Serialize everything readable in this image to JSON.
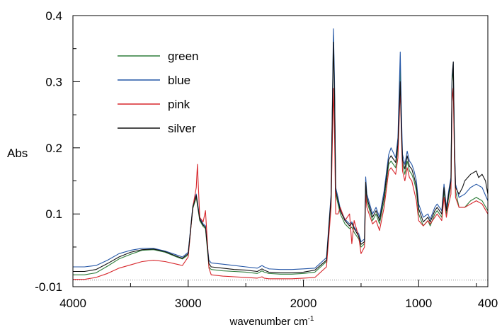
{
  "chart_data": {
    "type": "line",
    "title": "",
    "xlabel": "wavenumber",
    "xlabel_unit": "cm",
    "xlabel_unit_sup": "-1",
    "ylabel": "Abs",
    "x_reversed": true,
    "xlim": [
      4000,
      400
    ],
    "ylim": [
      -0.01,
      0.4
    ],
    "x_ticks": [
      4000,
      3000,
      2000,
      1000,
      400
    ],
    "x_tick_labels": [
      "4000",
      "3000",
      "2000",
      "1000",
      "400"
    ],
    "x_minor_ticks": [
      3500,
      2500,
      1500,
      500
    ],
    "y_ticks": [
      -0.01,
      0.1,
      0.2,
      0.3,
      0.4
    ],
    "y_tick_labels": [
      "-0.01",
      "0.1",
      "0.2",
      "0.3",
      "0.4"
    ],
    "y_minor_ticks": [
      0.05,
      0.15,
      0.25,
      0.35
    ],
    "baseline_y": 0,
    "grid": false,
    "legend_position": "top-left",
    "series": [
      {
        "name": "green",
        "color": "#2e7d3a",
        "x": [
          4000,
          3900,
          3800,
          3700,
          3600,
          3500,
          3400,
          3300,
          3200,
          3100,
          3050,
          3000,
          2960,
          2930,
          2900,
          2870,
          2850,
          2820,
          2800,
          2700,
          2600,
          2500,
          2400,
          2360,
          2340,
          2300,
          2200,
          2100,
          2000,
          1900,
          1800,
          1760,
          1740,
          1730,
          1720,
          1700,
          1680,
          1640,
          1600,
          1580,
          1560,
          1520,
          1500,
          1470,
          1460,
          1450,
          1400,
          1370,
          1340,
          1300,
          1260,
          1240,
          1200,
          1180,
          1160,
          1150,
          1140,
          1120,
          1100,
          1080,
          1060,
          1040,
          1020,
          1000,
          960,
          920,
          900,
          860,
          840,
          800,
          780,
          760,
          740,
          720,
          710,
          700,
          690,
          680,
          650,
          600,
          550,
          500,
          450,
          400
        ],
        "y": [
          0.008,
          0.008,
          0.011,
          0.021,
          0.032,
          0.039,
          0.045,
          0.046,
          0.042,
          0.035,
          0.032,
          0.038,
          0.108,
          0.125,
          0.09,
          0.081,
          0.078,
          0.02,
          0.016,
          0.014,
          0.013,
          0.012,
          0.01,
          0.014,
          0.012,
          0.01,
          0.009,
          0.009,
          0.01,
          0.012,
          0.028,
          0.12,
          0.37,
          0.29,
          0.13,
          0.115,
          0.1,
          0.085,
          0.078,
          0.08,
          0.072,
          0.062,
          0.05,
          0.055,
          0.142,
          0.12,
          0.09,
          0.1,
          0.085,
          0.12,
          0.175,
          0.18,
          0.17,
          0.2,
          0.32,
          0.24,
          0.175,
          0.16,
          0.18,
          0.165,
          0.16,
          0.15,
          0.135,
          0.1,
          0.082,
          0.09,
          0.082,
          0.1,
          0.105,
          0.095,
          0.135,
          0.1,
          0.125,
          0.145,
          0.3,
          0.32,
          0.2,
          0.135,
          0.11,
          0.11,
          0.12,
          0.125,
          0.12,
          0.105
        ]
      },
      {
        "name": "blue",
        "color": "#2456a6",
        "x": [
          4000,
          3900,
          3800,
          3700,
          3600,
          3500,
          3400,
          3300,
          3200,
          3100,
          3050,
          3000,
          2960,
          2930,
          2900,
          2870,
          2850,
          2820,
          2800,
          2700,
          2600,
          2500,
          2400,
          2360,
          2340,
          2300,
          2200,
          2100,
          2000,
          1900,
          1800,
          1760,
          1740,
          1730,
          1720,
          1700,
          1680,
          1640,
          1600,
          1580,
          1560,
          1520,
          1500,
          1470,
          1460,
          1450,
          1400,
          1370,
          1340,
          1300,
          1260,
          1240,
          1200,
          1180,
          1160,
          1150,
          1140,
          1120,
          1100,
          1080,
          1060,
          1040,
          1020,
          1000,
          960,
          920,
          900,
          860,
          840,
          800,
          780,
          760,
          740,
          720,
          710,
          700,
          690,
          680,
          650,
          600,
          550,
          500,
          450,
          400
        ],
        "y": [
          0.02,
          0.02,
          0.022,
          0.03,
          0.04,
          0.045,
          0.048,
          0.048,
          0.044,
          0.038,
          0.035,
          0.042,
          0.112,
          0.13,
          0.094,
          0.085,
          0.082,
          0.03,
          0.026,
          0.024,
          0.022,
          0.02,
          0.018,
          0.022,
          0.02,
          0.017,
          0.016,
          0.016,
          0.017,
          0.018,
          0.034,
          0.13,
          0.38,
          0.3,
          0.14,
          0.125,
          0.108,
          0.092,
          0.085,
          0.088,
          0.08,
          0.07,
          0.058,
          0.062,
          0.156,
          0.13,
          0.1,
          0.11,
          0.095,
          0.135,
          0.19,
          0.2,
          0.185,
          0.215,
          0.345,
          0.255,
          0.19,
          0.175,
          0.195,
          0.18,
          0.175,
          0.165,
          0.15,
          0.115,
          0.095,
          0.1,
          0.092,
          0.11,
          0.115,
          0.105,
          0.145,
          0.11,
          0.135,
          0.155,
          0.31,
          0.33,
          0.21,
          0.145,
          0.125,
          0.13,
          0.14,
          0.145,
          0.14,
          0.12
        ]
      },
      {
        "name": "pink",
        "color": "#d7262b",
        "x": [
          4000,
          3900,
          3800,
          3700,
          3600,
          3500,
          3400,
          3300,
          3200,
          3100,
          3050,
          3000,
          2960,
          2930,
          2920,
          2900,
          2870,
          2850,
          2820,
          2800,
          2700,
          2600,
          2500,
          2400,
          2360,
          2340,
          2300,
          2200,
          2100,
          2000,
          1900,
          1800,
          1760,
          1740,
          1730,
          1720,
          1700,
          1680,
          1640,
          1600,
          1580,
          1560,
          1520,
          1500,
          1470,
          1460,
          1450,
          1400,
          1370,
          1340,
          1300,
          1260,
          1240,
          1200,
          1180,
          1160,
          1150,
          1140,
          1120,
          1100,
          1080,
          1060,
          1040,
          1020,
          1000,
          960,
          920,
          900,
          860,
          840,
          800,
          780,
          760,
          740,
          720,
          710,
          700,
          690,
          680,
          650,
          600,
          550,
          500,
          450,
          400
        ],
        "y": [
          0.001,
          0.001,
          0.004,
          0.01,
          0.018,
          0.023,
          0.028,
          0.03,
          0.028,
          0.024,
          0.022,
          0.035,
          0.11,
          0.14,
          0.175,
          0.095,
          0.088,
          0.105,
          0.018,
          0.008,
          0.006,
          0.005,
          0.004,
          0.003,
          0.005,
          0.003,
          0.002,
          0.002,
          0.002,
          0.003,
          0.004,
          0.02,
          0.11,
          0.29,
          0.22,
          0.1,
          0.1,
          0.11,
          0.09,
          0.1,
          0.055,
          0.09,
          0.065,
          0.04,
          0.05,
          0.13,
          0.11,
          0.085,
          0.09,
          0.075,
          0.11,
          0.165,
          0.17,
          0.16,
          0.185,
          0.29,
          0.22,
          0.165,
          0.15,
          0.17,
          0.155,
          0.15,
          0.135,
          0.12,
          0.09,
          0.082,
          0.09,
          0.085,
          0.095,
          0.1,
          0.09,
          0.125,
          0.095,
          0.115,
          0.13,
          0.27,
          0.29,
          0.185,
          0.125,
          0.11,
          0.11,
          0.115,
          0.12,
          0.115,
          0.1
        ]
      },
      {
        "name": "silver",
        "color": "#111111",
        "x": [
          4000,
          3900,
          3800,
          3700,
          3600,
          3500,
          3400,
          3300,
          3200,
          3100,
          3050,
          3000,
          2960,
          2930,
          2900,
          2870,
          2850,
          2820,
          2800,
          2700,
          2600,
          2500,
          2400,
          2360,
          2340,
          2300,
          2200,
          2100,
          2000,
          1900,
          1800,
          1760,
          1740,
          1730,
          1720,
          1700,
          1680,
          1640,
          1600,
          1580,
          1560,
          1520,
          1500,
          1470,
          1460,
          1450,
          1400,
          1370,
          1340,
          1300,
          1260,
          1240,
          1200,
          1180,
          1160,
          1150,
          1140,
          1120,
          1100,
          1080,
          1060,
          1040,
          1020,
          1000,
          960,
          920,
          900,
          860,
          840,
          800,
          780,
          760,
          740,
          720,
          710,
          700,
          690,
          680,
          650,
          620,
          600,
          550,
          500,
          480,
          450,
          420,
          400
        ],
        "y": [
          0.013,
          0.013,
          0.016,
          0.025,
          0.035,
          0.042,
          0.046,
          0.047,
          0.043,
          0.036,
          0.033,
          0.04,
          0.11,
          0.128,
          0.092,
          0.083,
          0.08,
          0.025,
          0.02,
          0.018,
          0.016,
          0.015,
          0.013,
          0.017,
          0.015,
          0.012,
          0.011,
          0.011,
          0.012,
          0.015,
          0.03,
          0.125,
          0.36,
          0.28,
          0.135,
          0.12,
          0.105,
          0.09,
          0.082,
          0.086,
          0.078,
          0.066,
          0.054,
          0.058,
          0.148,
          0.125,
          0.095,
          0.105,
          0.09,
          0.128,
          0.182,
          0.188,
          0.178,
          0.206,
          0.3,
          0.23,
          0.182,
          0.168,
          0.188,
          0.172,
          0.168,
          0.156,
          0.142,
          0.108,
          0.088,
          0.095,
          0.088,
          0.105,
          0.11,
          0.1,
          0.14,
          0.105,
          0.13,
          0.15,
          0.305,
          0.33,
          0.205,
          0.14,
          0.13,
          0.14,
          0.15,
          0.16,
          0.165,
          0.155,
          0.16,
          0.15,
          0.13
        ]
      }
    ]
  }
}
